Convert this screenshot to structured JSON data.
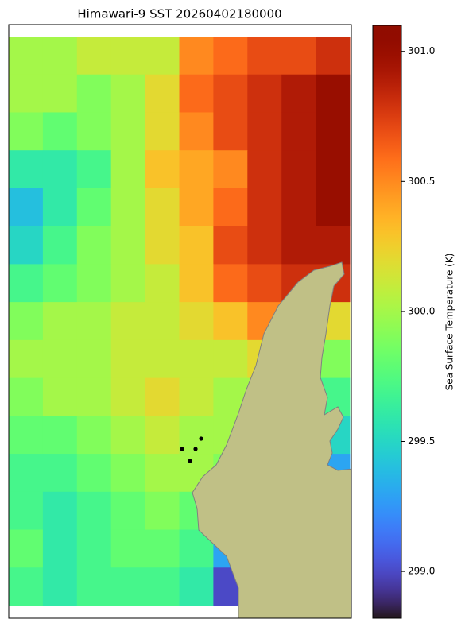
{
  "chart_data": {
    "type": "heatmap",
    "title": "Himawari-9 SST 20260402180000",
    "colorbar_label": "Sea Surface Temperature (K)",
    "colormap": "turbo",
    "clim": [
      298.82,
      301.1
    ],
    "cticks": [
      {
        "value": 299,
        "label": "299.0"
      },
      299.5,
      {
        "value": 300,
        "label": "300.0"
      },
      300.5,
      {
        "value": 301,
        "label": "301.0"
      }
    ],
    "values": [
      [
        300.0,
        300.0,
        300.1,
        300.1,
        300.1,
        300.5,
        300.6,
        300.7,
        300.7,
        300.8
      ],
      [
        300.0,
        300.0,
        299.9,
        300.0,
        300.2,
        300.6,
        300.7,
        300.8,
        300.9,
        301.0
      ],
      [
        299.9,
        299.8,
        299.9,
        300.0,
        300.2,
        300.5,
        300.7,
        300.8,
        300.9,
        301.0
      ],
      [
        299.6,
        299.6,
        299.7,
        300.0,
        300.3,
        300.4,
        300.5,
        300.8,
        300.9,
        301.0
      ],
      [
        299.4,
        299.6,
        299.8,
        300.0,
        300.2,
        300.4,
        300.6,
        300.8,
        300.9,
        301.0
      ],
      [
        299.5,
        299.7,
        299.9,
        300.0,
        300.2,
        300.3,
        300.7,
        300.8,
        300.9,
        300.9
      ],
      [
        299.7,
        299.8,
        299.9,
        300.0,
        300.1,
        300.3,
        300.6,
        300.7,
        300.8,
        300.8
      ],
      [
        299.9,
        300.0,
        300.0,
        300.1,
        300.1,
        300.2,
        300.3,
        300.5,
        300.4,
        300.2
      ],
      [
        300.0,
        300.0,
        300.0,
        300.1,
        300.1,
        300.1,
        300.1,
        300.2,
        300.1,
        299.9
      ],
      [
        299.9,
        300.0,
        300.0,
        300.1,
        300.2,
        300.1,
        300.0,
        300.0,
        299.9,
        299.7
      ],
      [
        299.8,
        299.8,
        299.9,
        300.0,
        300.1,
        300.0,
        300.0,
        299.9,
        299.8,
        299.5
      ],
      [
        299.7,
        299.7,
        299.8,
        299.9,
        300.0,
        300.0,
        299.9,
        299.8,
        299.7,
        299.3
      ],
      [
        299.7,
        299.6,
        299.7,
        299.8,
        299.9,
        299.8,
        299.5,
        299.6,
        299.6,
        299.6
      ],
      [
        299.8,
        299.6,
        299.7,
        299.8,
        299.8,
        299.7,
        299.3,
        299.6,
        299.6,
        299.6
      ],
      [
        299.7,
        299.6,
        299.7,
        299.7,
        299.7,
        299.6,
        299.0,
        299.4,
        299.5,
        299.5
      ]
    ]
  }
}
